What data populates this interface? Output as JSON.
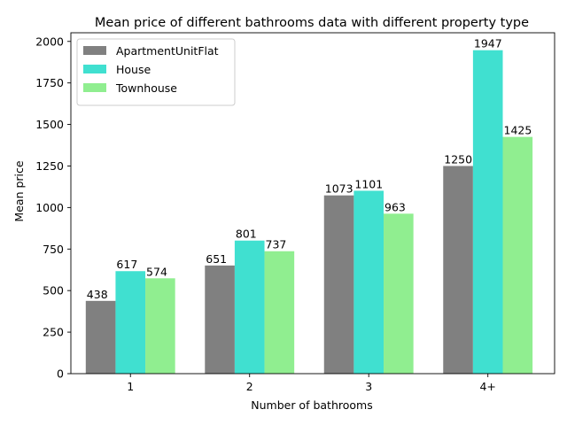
{
  "chart_data": {
    "type": "bar",
    "title": "Mean price of different bathrooms data with different property type",
    "xlabel": "Number of bathrooms",
    "ylabel": "Mean price",
    "categories": [
      "1",
      "2",
      "3",
      "4+"
    ],
    "ylim": [
      0,
      2000
    ],
    "yticks": [
      0,
      250,
      500,
      750,
      1000,
      1250,
      1500,
      1750,
      2000
    ],
    "grid": false,
    "legend_position": "top-left",
    "series": [
      {
        "name": "ApartmentUnitFlat",
        "color": "#808080",
        "values": [
          438,
          651,
          1073,
          1250
        ]
      },
      {
        "name": "House",
        "color": "#40e0d0",
        "values": [
          617,
          801,
          1101,
          1947
        ]
      },
      {
        "name": "Townhouse",
        "color": "#90ee90",
        "values": [
          574,
          737,
          963,
          1425
        ]
      }
    ]
  }
}
